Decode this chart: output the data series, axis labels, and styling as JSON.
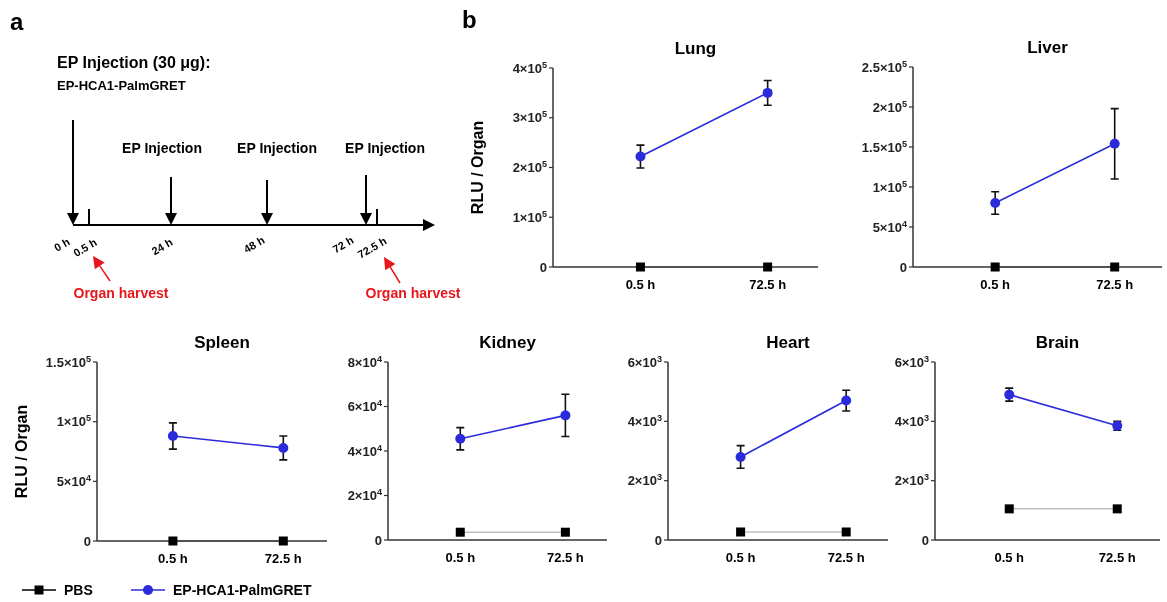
{
  "chart_data": [
    {
      "type": "other",
      "title": "EP Injection (30 μg):",
      "subtitle": "EP-HCA1-PalmGRET",
      "annotations": [
        "a",
        "EP Injection",
        "EP Injection",
        "EP Injection",
        "0 h",
        "0.5 h",
        "24 h",
        "48 h",
        "72 h",
        "72.5 h",
        "Organ harvest",
        "Organ harvest"
      ]
    },
    {
      "type": "line",
      "title": "Lung",
      "ylabel": "RLU / Organ",
      "annotations": [
        "b"
      ],
      "categories": [
        "0.5 h",
        "72.5 h"
      ],
      "ylim": [
        0,
        400000
      ],
      "yticks": [
        {
          "value": 0,
          "label": "0"
        },
        {
          "value": 100000,
          "label": "1×10$^{5}$"
        },
        {
          "value": 200000,
          "label": "2×10$^{5}$"
        },
        {
          "value": 300000,
          "label": "3×10$^{5}$"
        },
        {
          "value": 400000,
          "label": "4×10$^{5}$"
        }
      ],
      "series": [
        {
          "color": "#000000",
          "marker": "square",
          "values": [
            0,
            0
          ]
        },
        {
          "color": "#2b2bdc",
          "marker": "circle",
          "values": [
            222000,
            350000
          ],
          "errors": [
            23000,
            25000
          ]
        }
      ]
    },
    {
      "type": "line",
      "title": "Liver",
      "categories": [
        "0.5 h",
        "72.5 h"
      ],
      "ylim": [
        0,
        250000
      ],
      "yticks": [
        {
          "value": 0,
          "label": "0"
        },
        {
          "value": 50000,
          "label": "5×10$^{4}$"
        },
        {
          "value": 100000,
          "label": "1×10$^{5}$"
        },
        {
          "value": 150000,
          "label": "1.5×10$^{5}$"
        },
        {
          "value": 200000,
          "label": "2×10$^{5}$"
        },
        {
          "value": 250000,
          "label": "2.5×10$^{5}$"
        }
      ],
      "series": [
        {
          "color": "#000000",
          "marker": "square",
          "values": [
            0,
            0
          ]
        },
        {
          "color": "#2b2bdc",
          "marker": "circle",
          "values": [
            80000,
            154000
          ],
          "errors": [
            14000,
            44000
          ]
        }
      ]
    },
    {
      "type": "line",
      "title": "Spleen",
      "ylabel": "RLU / Organ",
      "legend": "bottom",
      "categories": [
        "0.5 h",
        "72.5 h"
      ],
      "ylim": [
        0,
        150000
      ],
      "yticks": [
        {
          "value": 0,
          "label": "0"
        },
        {
          "value": 50000,
          "label": "5×10$^{4}$"
        },
        {
          "value": 100000,
          "label": "1×10$^{5}$"
        },
        {
          "value": 150000,
          "label": "1.5×10$^{5}$"
        }
      ],
      "series": [
        {
          "name": "PBS",
          "color": "#000000",
          "marker": "square",
          "values": [
            0,
            0
          ]
        },
        {
          "name": "EP-HCA1-PalmGRET",
          "color": "#2b2bdc",
          "marker": "circle",
          "values": [
            88000,
            78000
          ],
          "errors": [
            11000,
            10000
          ]
        }
      ]
    },
    {
      "type": "line",
      "title": "Kidney",
      "categories": [
        "0.5 h",
        "72.5 h"
      ],
      "ylim": [
        0,
        80000
      ],
      "yticks": [
        {
          "value": 0,
          "label": "0"
        },
        {
          "value": 20000,
          "label": "2×10$^{4}$"
        },
        {
          "value": 40000,
          "label": "4×10$^{4}$"
        },
        {
          "value": 60000,
          "label": "6×10$^{4}$"
        },
        {
          "value": 80000,
          "label": "8×10$^{4}$"
        }
      ],
      "series": [
        {
          "color": "#000000",
          "marker": "square",
          "values": [
            3500,
            3500
          ]
        },
        {
          "color": "#2b2bdc",
          "marker": "circle",
          "values": [
            45500,
            56000
          ],
          "errors": [
            5000,
            9500
          ]
        }
      ]
    },
    {
      "type": "line",
      "title": "Heart",
      "categories": [
        "0.5 h",
        "72.5 h"
      ],
      "ylim": [
        0,
        6000
      ],
      "yticks": [
        {
          "value": 0,
          "label": "0"
        },
        {
          "value": 2000,
          "label": "2×10$^{3}$"
        },
        {
          "value": 4000,
          "label": "4×10$^{3}$"
        },
        {
          "value": 6000,
          "label": "6×10$^{3}$"
        }
      ],
      "series": [
        {
          "color": "#000000",
          "marker": "square",
          "values": [
            270,
            270
          ]
        },
        {
          "color": "#2b2bdc",
          "marker": "circle",
          "values": [
            2800,
            4700
          ],
          "errors": [
            380,
            350
          ]
        }
      ]
    },
    {
      "type": "line",
      "title": "Brain",
      "categories": [
        "0.5 h",
        "72.5 h"
      ],
      "ylim": [
        0,
        6000
      ],
      "yticks": [
        {
          "value": 0,
          "label": "0"
        },
        {
          "value": 2000,
          "label": "2×10$^{3}$"
        },
        {
          "value": 4000,
          "label": "4×10$^{3}$"
        },
        {
          "value": 6000,
          "label": "6×10$^{3}$"
        }
      ],
      "series": [
        {
          "color": "#000000",
          "marker": "square",
          "values": [
            1050,
            1050
          ]
        },
        {
          "color": "#2b2bdc",
          "marker": "circle",
          "values": [
            4900,
            3850
          ],
          "errors": [
            220,
            150
          ]
        }
      ]
    }
  ]
}
